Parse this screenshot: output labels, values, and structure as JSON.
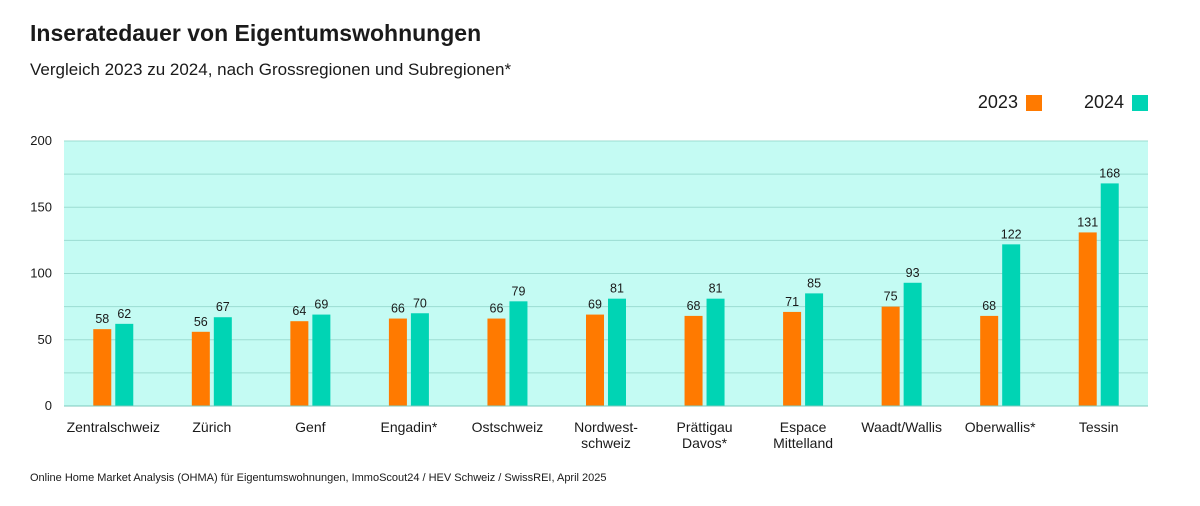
{
  "chart_data": {
    "type": "bar",
    "title": "Inseratedauer von Eigentumswohnungen",
    "subtitle": "Vergleich 2023 zu 2024, nach Grossregionen und Subregionen*",
    "categories": [
      [
        "Zentralschweiz"
      ],
      [
        "Zürich"
      ],
      [
        "Genf"
      ],
      [
        "Engadin*"
      ],
      [
        "Ostschweiz"
      ],
      [
        "Nordwest-",
        "schweiz"
      ],
      [
        "Prättigau",
        "Davos*"
      ],
      [
        "Espace",
        "Mittelland"
      ],
      [
        "Waadt/Wallis"
      ],
      [
        "Oberwallis*"
      ],
      [
        "Tessin"
      ]
    ],
    "series": [
      {
        "name": "2023",
        "color": "#ff7a00",
        "values": [
          58,
          56,
          64,
          66,
          66,
          69,
          68,
          71,
          75,
          68,
          131
        ]
      },
      {
        "name": "2024",
        "color": "#00d4b4",
        "values": [
          62,
          67,
          69,
          70,
          79,
          81,
          81,
          85,
          93,
          122,
          168
        ]
      }
    ],
    "ylim": [
      0,
      200
    ],
    "yticks": [
      "0",
      "50",
      "100",
      "150",
      "200"
    ],
    "grid": true,
    "legend_position": "top-right",
    "plot_background": "#c4fbf3",
    "source": "Online Home Market Analysis (OHMA) für Eigentumswohnungen, ImmoScout24 / HEV Schweiz / SwissREI, April 2025"
  }
}
